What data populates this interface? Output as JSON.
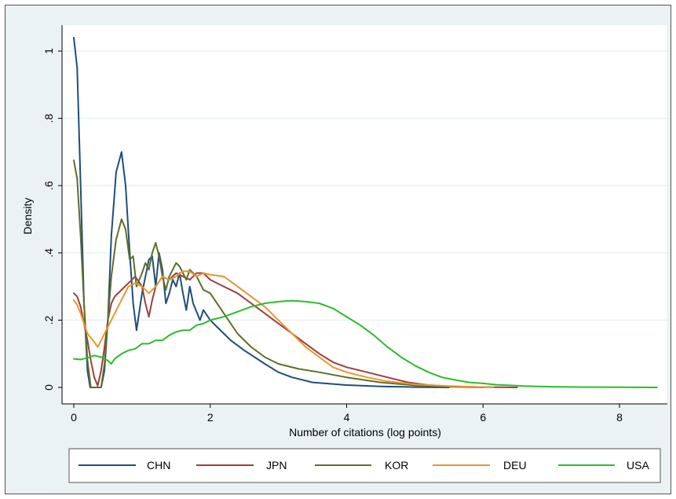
{
  "chart_data": {
    "type": "line",
    "title": "",
    "xlabel": "Number of citations (log points)",
    "ylabel": "Density",
    "xlim": [
      0,
      8.6
    ],
    "ylim": [
      -0.03,
      1.06
    ],
    "x_ticks": [
      0,
      2,
      4,
      6,
      8
    ],
    "x_tick_labels": [
      "0",
      "2",
      "4",
      "6",
      "8"
    ],
    "y_ticks": [
      0,
      0.2,
      0.4,
      0.6,
      0.8,
      1
    ],
    "y_tick_labels": [
      "0",
      ".2",
      ".4",
      ".6",
      ".8",
      "1"
    ],
    "grid": "horizontal",
    "legend_position": "bottom",
    "series": [
      {
        "name": "CHN",
        "color": "#1f4e79",
        "points": [
          [
            0,
            1.04
          ],
          [
            0.05,
            0.95
          ],
          [
            0.1,
            0.6
          ],
          [
            0.15,
            0.25
          ],
          [
            0.2,
            0.05
          ],
          [
            0.24,
            0
          ],
          [
            0.4,
            0
          ],
          [
            0.45,
            0.05
          ],
          [
            0.5,
            0.2
          ],
          [
            0.55,
            0.45
          ],
          [
            0.62,
            0.64
          ],
          [
            0.7,
            0.7
          ],
          [
            0.76,
            0.6
          ],
          [
            0.82,
            0.4
          ],
          [
            0.87,
            0.25
          ],
          [
            0.92,
            0.17
          ],
          [
            1.0,
            0.28
          ],
          [
            1.1,
            0.38
          ],
          [
            1.15,
            0.39
          ],
          [
            1.2,
            0.3
          ],
          [
            1.25,
            0.4
          ],
          [
            1.3,
            0.35
          ],
          [
            1.35,
            0.25
          ],
          [
            1.4,
            0.28
          ],
          [
            1.45,
            0.32
          ],
          [
            1.5,
            0.3
          ],
          [
            1.55,
            0.34
          ],
          [
            1.6,
            0.28
          ],
          [
            1.65,
            0.23
          ],
          [
            1.7,
            0.3
          ],
          [
            1.75,
            0.25
          ],
          [
            1.85,
            0.2
          ],
          [
            1.9,
            0.23
          ],
          [
            2.0,
            0.2
          ],
          [
            2.1,
            0.18
          ],
          [
            2.2,
            0.16
          ],
          [
            2.3,
            0.14
          ],
          [
            2.5,
            0.11
          ],
          [
            2.8,
            0.07
          ],
          [
            3.0,
            0.045
          ],
          [
            3.2,
            0.03
          ],
          [
            3.5,
            0.015
          ],
          [
            4.0,
            0.007
          ],
          [
            4.5,
            0.003
          ],
          [
            5.0,
            0.001
          ],
          [
            5.5,
            0
          ]
        ]
      },
      {
        "name": "JPN",
        "color": "#9e3e3e",
        "points": [
          [
            0,
            0.28
          ],
          [
            0.05,
            0.27
          ],
          [
            0.1,
            0.24
          ],
          [
            0.15,
            0.19
          ],
          [
            0.2,
            0.14
          ],
          [
            0.25,
            0.08
          ],
          [
            0.3,
            0.03
          ],
          [
            0.35,
            0.005
          ],
          [
            0.4,
            0.05
          ],
          [
            0.45,
            0.12
          ],
          [
            0.5,
            0.2
          ],
          [
            0.55,
            0.25
          ],
          [
            0.6,
            0.27
          ],
          [
            0.7,
            0.29
          ],
          [
            0.8,
            0.31
          ],
          [
            0.9,
            0.33
          ],
          [
            1.0,
            0.3
          ],
          [
            1.05,
            0.25
          ],
          [
            1.1,
            0.21
          ],
          [
            1.15,
            0.26
          ],
          [
            1.2,
            0.3
          ],
          [
            1.3,
            0.33
          ],
          [
            1.4,
            0.32
          ],
          [
            1.5,
            0.34
          ],
          [
            1.6,
            0.33
          ],
          [
            1.7,
            0.32
          ],
          [
            1.8,
            0.34
          ],
          [
            1.9,
            0.34
          ],
          [
            2.0,
            0.32
          ],
          [
            2.2,
            0.3
          ],
          [
            2.4,
            0.28
          ],
          [
            2.6,
            0.25
          ],
          [
            2.8,
            0.22
          ],
          [
            3.0,
            0.19
          ],
          [
            3.2,
            0.16
          ],
          [
            3.4,
            0.13
          ],
          [
            3.6,
            0.1
          ],
          [
            3.8,
            0.075
          ],
          [
            4.0,
            0.06
          ],
          [
            4.3,
            0.045
          ],
          [
            4.6,
            0.03
          ],
          [
            4.9,
            0.015
          ],
          [
            5.2,
            0.007
          ],
          [
            5.5,
            0.003
          ],
          [
            6.0,
            0.001
          ],
          [
            6.5,
            0
          ]
        ]
      },
      {
        "name": "KOR",
        "color": "#5e6e2c",
        "points": [
          [
            0,
            0.675
          ],
          [
            0.05,
            0.62
          ],
          [
            0.1,
            0.45
          ],
          [
            0.15,
            0.25
          ],
          [
            0.2,
            0.08
          ],
          [
            0.25,
            0
          ],
          [
            0.4,
            0
          ],
          [
            0.45,
            0.07
          ],
          [
            0.5,
            0.2
          ],
          [
            0.55,
            0.33
          ],
          [
            0.62,
            0.44
          ],
          [
            0.7,
            0.5
          ],
          [
            0.76,
            0.47
          ],
          [
            0.82,
            0.38
          ],
          [
            0.87,
            0.39
          ],
          [
            0.92,
            0.3
          ],
          [
            1.0,
            0.34
          ],
          [
            1.05,
            0.37
          ],
          [
            1.1,
            0.35
          ],
          [
            1.15,
            0.4
          ],
          [
            1.2,
            0.43
          ],
          [
            1.25,
            0.39
          ],
          [
            1.3,
            0.33
          ],
          [
            1.35,
            0.29
          ],
          [
            1.4,
            0.33
          ],
          [
            1.45,
            0.35
          ],
          [
            1.5,
            0.37
          ],
          [
            1.55,
            0.36
          ],
          [
            1.6,
            0.34
          ],
          [
            1.65,
            0.32
          ],
          [
            1.7,
            0.35
          ],
          [
            1.8,
            0.33
          ],
          [
            1.9,
            0.29
          ],
          [
            2.0,
            0.28
          ],
          [
            2.2,
            0.22
          ],
          [
            2.4,
            0.16
          ],
          [
            2.6,
            0.12
          ],
          [
            2.8,
            0.09
          ],
          [
            3.0,
            0.07
          ],
          [
            3.3,
            0.055
          ],
          [
            3.6,
            0.045
          ],
          [
            4.0,
            0.03
          ],
          [
            4.5,
            0.015
          ],
          [
            5.0,
            0.006
          ],
          [
            5.5,
            0.002
          ],
          [
            6.0,
            0
          ]
        ]
      },
      {
        "name": "DEU",
        "color": "#e8962c",
        "points": [
          [
            0,
            0.26
          ],
          [
            0.05,
            0.245
          ],
          [
            0.1,
            0.22
          ],
          [
            0.15,
            0.19
          ],
          [
            0.2,
            0.16
          ],
          [
            0.3,
            0.135
          ],
          [
            0.35,
            0.12
          ],
          [
            0.4,
            0.14
          ],
          [
            0.5,
            0.18
          ],
          [
            0.6,
            0.22
          ],
          [
            0.7,
            0.26
          ],
          [
            0.8,
            0.3
          ],
          [
            0.9,
            0.31
          ],
          [
            1.0,
            0.3
          ],
          [
            1.1,
            0.28
          ],
          [
            1.2,
            0.3
          ],
          [
            1.3,
            0.33
          ],
          [
            1.4,
            0.32
          ],
          [
            1.5,
            0.33
          ],
          [
            1.6,
            0.345
          ],
          [
            1.7,
            0.345
          ],
          [
            1.8,
            0.33
          ],
          [
            1.9,
            0.34
          ],
          [
            2.0,
            0.335
          ],
          [
            2.2,
            0.33
          ],
          [
            2.4,
            0.3
          ],
          [
            2.6,
            0.27
          ],
          [
            2.8,
            0.24
          ],
          [
            3.0,
            0.2
          ],
          [
            3.2,
            0.16
          ],
          [
            3.4,
            0.12
          ],
          [
            3.6,
            0.09
          ],
          [
            3.8,
            0.06
          ],
          [
            4.0,
            0.045
          ],
          [
            4.3,
            0.03
          ],
          [
            4.6,
            0.018
          ],
          [
            5.0,
            0.009
          ],
          [
            5.5,
            0.004
          ],
          [
            6.0,
            0.001
          ],
          [
            6.15,
            0
          ]
        ]
      },
      {
        "name": "USA",
        "color": "#2bbd2b",
        "points": [
          [
            0,
            0.085
          ],
          [
            0.1,
            0.083
          ],
          [
            0.2,
            0.088
          ],
          [
            0.3,
            0.095
          ],
          [
            0.4,
            0.09
          ],
          [
            0.5,
            0.08
          ],
          [
            0.55,
            0.07
          ],
          [
            0.6,
            0.085
          ],
          [
            0.7,
            0.1
          ],
          [
            0.8,
            0.11
          ],
          [
            0.9,
            0.115
          ],
          [
            1.0,
            0.13
          ],
          [
            1.1,
            0.13
          ],
          [
            1.2,
            0.14
          ],
          [
            1.3,
            0.14
          ],
          [
            1.4,
            0.155
          ],
          [
            1.5,
            0.165
          ],
          [
            1.6,
            0.17
          ],
          [
            1.7,
            0.17
          ],
          [
            1.8,
            0.185
          ],
          [
            1.9,
            0.19
          ],
          [
            2.0,
            0.2
          ],
          [
            2.2,
            0.21
          ],
          [
            2.4,
            0.225
          ],
          [
            2.6,
            0.24
          ],
          [
            2.8,
            0.25
          ],
          [
            3.0,
            0.255
          ],
          [
            3.2,
            0.258
          ],
          [
            3.4,
            0.255
          ],
          [
            3.6,
            0.25
          ],
          [
            3.8,
            0.235
          ],
          [
            4.0,
            0.21
          ],
          [
            4.2,
            0.185
          ],
          [
            4.4,
            0.155
          ],
          [
            4.6,
            0.12
          ],
          [
            4.8,
            0.09
          ],
          [
            5.0,
            0.065
          ],
          [
            5.2,
            0.045
          ],
          [
            5.4,
            0.03
          ],
          [
            5.6,
            0.022
          ],
          [
            5.8,
            0.015
          ],
          [
            6.0,
            0.012
          ],
          [
            6.2,
            0.008
          ],
          [
            6.4,
            0.006
          ],
          [
            6.6,
            0.004
          ],
          [
            6.8,
            0.003
          ],
          [
            7.0,
            0.002
          ],
          [
            7.5,
            0.001
          ],
          [
            8.0,
            0.0005
          ],
          [
            8.55,
            0
          ]
        ]
      }
    ]
  }
}
